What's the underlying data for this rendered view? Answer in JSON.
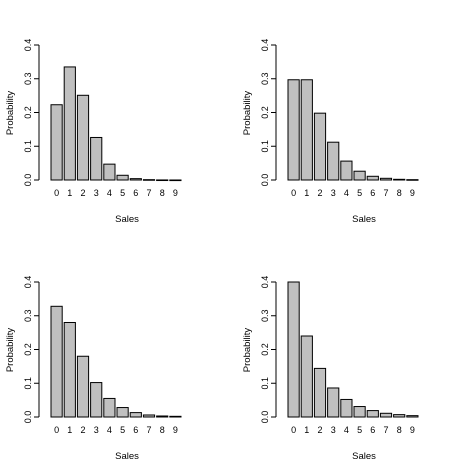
{
  "chart_data": [
    {
      "type": "bar",
      "title": "",
      "xlabel": "Sales",
      "ylabel": "Probability",
      "ylim": [
        0,
        0.4
      ],
      "yticks": [
        "0.0",
        "0.1",
        "0.2",
        "0.3",
        "0.4"
      ],
      "categories": [
        "0",
        "1",
        "2",
        "3",
        "4",
        "5",
        "6",
        "7",
        "8",
        "9"
      ],
      "values": [
        0.223,
        0.335,
        0.251,
        0.126,
        0.047,
        0.014,
        0.004,
        0.001,
        0.0002,
        3e-05
      ],
      "colors": {
        "bar_fill": "#c0c0c0",
        "bar_stroke": "#000000"
      }
    },
    {
      "type": "bar",
      "title": "",
      "xlabel": "Sales",
      "ylabel": "Probability",
      "ylim": [
        0,
        0.4
      ],
      "yticks": [
        "0.0",
        "0.1",
        "0.2",
        "0.3",
        "0.4"
      ],
      "categories": [
        "0",
        "1",
        "2",
        "3",
        "4",
        "5",
        "6",
        "7",
        "8",
        "9"
      ],
      "values": [
        0.297,
        0.297,
        0.198,
        0.112,
        0.056,
        0.026,
        0.011,
        0.005,
        0.002,
        0.001
      ],
      "colors": {
        "bar_fill": "#c0c0c0",
        "bar_stroke": "#000000"
      }
    },
    {
      "type": "bar",
      "title": "",
      "xlabel": "Sales",
      "ylabel": "Probability",
      "ylim": [
        0,
        0.4
      ],
      "yticks": [
        "0.0",
        "0.1",
        "0.2",
        "0.3",
        "0.4"
      ],
      "categories": [
        "0",
        "1",
        "2",
        "3",
        "4",
        "5",
        "6",
        "7",
        "8",
        "9"
      ],
      "values": [
        0.328,
        0.28,
        0.18,
        0.102,
        0.055,
        0.028,
        0.013,
        0.006,
        0.003,
        0.002
      ],
      "colors": {
        "bar_fill": "#c0c0c0",
        "bar_stroke": "#000000"
      }
    },
    {
      "type": "bar",
      "title": "",
      "xlabel": "Sales",
      "ylabel": "Probability",
      "ylim": [
        0,
        0.4
      ],
      "yticks": [
        "0.0",
        "0.1",
        "0.2",
        "0.3",
        "0.4"
      ],
      "categories": [
        "0",
        "1",
        "2",
        "3",
        "4",
        "5",
        "6",
        "7",
        "8",
        "9"
      ],
      "values": [
        0.4,
        0.24,
        0.144,
        0.086,
        0.052,
        0.031,
        0.019,
        0.011,
        0.007,
        0.004
      ],
      "colors": {
        "bar_fill": "#c0c0c0",
        "bar_stroke": "#000000"
      }
    }
  ]
}
